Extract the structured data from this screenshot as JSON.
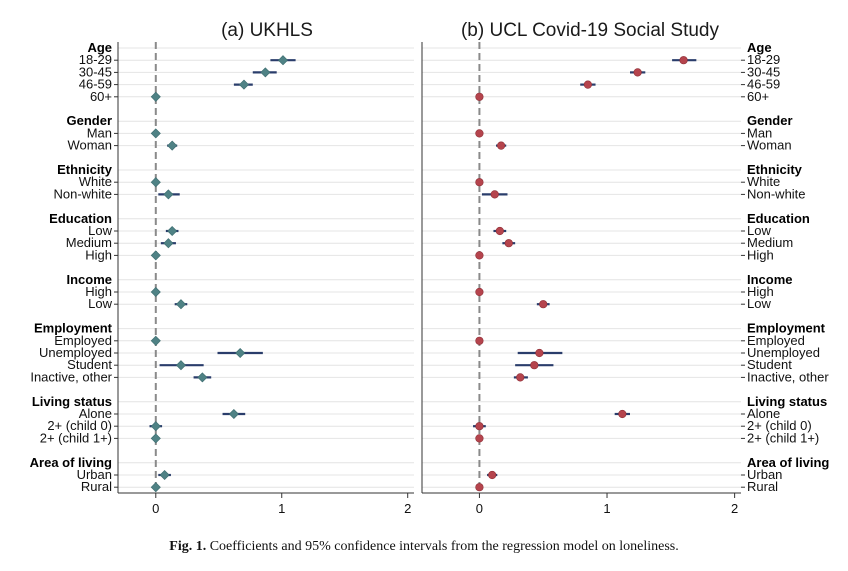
{
  "caption": {
    "label": "Fig. 1.",
    "text": "Coefficients and 95% confidence intervals from the regression model on loneliness."
  },
  "colors": {
    "ukhls_marker": "#4f8285",
    "ucl_marker": "#b5444d",
    "ci_line": "#2a3d6b",
    "zero_line": "#8a8a8a",
    "grid": "#e4e4e4"
  },
  "rows": [
    {
      "label": "Age",
      "type": "group"
    },
    {
      "label": "18-29",
      "type": "item"
    },
    {
      "label": "30-45",
      "type": "item"
    },
    {
      "label": "46-59",
      "type": "item"
    },
    {
      "label": "60+",
      "type": "item"
    },
    {
      "label": "",
      "type": "gap"
    },
    {
      "label": "Gender",
      "type": "group"
    },
    {
      "label": "Man",
      "type": "item"
    },
    {
      "label": "Woman",
      "type": "item"
    },
    {
      "label": "",
      "type": "gap"
    },
    {
      "label": "Ethnicity",
      "type": "group"
    },
    {
      "label": "White",
      "type": "item"
    },
    {
      "label": "Non-white",
      "type": "item"
    },
    {
      "label": "",
      "type": "gap"
    },
    {
      "label": "Education",
      "type": "group"
    },
    {
      "label": "Low",
      "type": "item"
    },
    {
      "label": "Medium",
      "type": "item"
    },
    {
      "label": "High",
      "type": "item"
    },
    {
      "label": "",
      "type": "gap"
    },
    {
      "label": "Income",
      "type": "group"
    },
    {
      "label": "High",
      "type": "item"
    },
    {
      "label": "Low",
      "type": "item"
    },
    {
      "label": "",
      "type": "gap"
    },
    {
      "label": "Employment",
      "type": "group"
    },
    {
      "label": "Employed",
      "type": "item"
    },
    {
      "label": "Unemployed",
      "type": "item"
    },
    {
      "label": "Student",
      "type": "item"
    },
    {
      "label": "Inactive, other",
      "type": "item"
    },
    {
      "label": "",
      "type": "gap"
    },
    {
      "label": "Living status",
      "type": "group"
    },
    {
      "label": "Alone",
      "type": "item"
    },
    {
      "label": "2+ (child 0)",
      "type": "item"
    },
    {
      "label": "2+ (child 1+)",
      "type": "item"
    },
    {
      "label": "",
      "type": "gap"
    },
    {
      "label": "Area of living",
      "type": "group"
    },
    {
      "label": "Urban",
      "type": "item"
    },
    {
      "label": "Rural",
      "type": "item"
    }
  ],
  "chart_data": [
    {
      "type": "scatter",
      "title": "(a) UKHLS",
      "xlim": [
        -0.3,
        2.05
      ],
      "xticks": [
        "0",
        "1",
        "2"
      ],
      "grid": "horizontal",
      "estimates": [
        {
          "row": 1,
          "coef": 1.01,
          "lo": 0.91,
          "hi": 1.11
        },
        {
          "row": 2,
          "coef": 0.87,
          "lo": 0.77,
          "hi": 0.96
        },
        {
          "row": 3,
          "coef": 0.7,
          "lo": 0.62,
          "hi": 0.77
        },
        {
          "row": 4,
          "coef": 0,
          "lo": 0,
          "hi": 0
        },
        {
          "row": 7,
          "coef": 0,
          "lo": 0,
          "hi": 0
        },
        {
          "row": 8,
          "coef": 0.13,
          "lo": 0.09,
          "hi": 0.17
        },
        {
          "row": 11,
          "coef": 0,
          "lo": 0,
          "hi": 0
        },
        {
          "row": 12,
          "coef": 0.1,
          "lo": 0.02,
          "hi": 0.19
        },
        {
          "row": 15,
          "coef": 0.13,
          "lo": 0.08,
          "hi": 0.18
        },
        {
          "row": 16,
          "coef": 0.1,
          "lo": 0.04,
          "hi": 0.16
        },
        {
          "row": 17,
          "coef": 0,
          "lo": 0,
          "hi": 0
        },
        {
          "row": 20,
          "coef": 0,
          "lo": 0,
          "hi": 0
        },
        {
          "row": 21,
          "coef": 0.2,
          "lo": 0.15,
          "hi": 0.25
        },
        {
          "row": 24,
          "coef": 0,
          "lo": 0,
          "hi": 0
        },
        {
          "row": 25,
          "coef": 0.67,
          "lo": 0.49,
          "hi": 0.85
        },
        {
          "row": 26,
          "coef": 0.2,
          "lo": 0.03,
          "hi": 0.38
        },
        {
          "row": 27,
          "coef": 0.37,
          "lo": 0.3,
          "hi": 0.44
        },
        {
          "row": 30,
          "coef": 0.62,
          "lo": 0.53,
          "hi": 0.71
        },
        {
          "row": 31,
          "coef": 0,
          "lo": -0.05,
          "hi": 0.05
        },
        {
          "row": 32,
          "coef": 0,
          "lo": 0,
          "hi": 0
        },
        {
          "row": 35,
          "coef": 0.07,
          "lo": 0.02,
          "hi": 0.12
        },
        {
          "row": 36,
          "coef": 0,
          "lo": 0,
          "hi": 0
        }
      ]
    },
    {
      "type": "scatter",
      "title": "(b) UCL Covid-19 Social Study",
      "xlim": [
        -0.45,
        2.05
      ],
      "xticks": [
        "0",
        "1",
        "2"
      ],
      "grid": "horizontal",
      "estimates": [
        {
          "row": 1,
          "coef": 1.6,
          "lo": 1.51,
          "hi": 1.7
        },
        {
          "row": 2,
          "coef": 1.24,
          "lo": 1.18,
          "hi": 1.3
        },
        {
          "row": 3,
          "coef": 0.85,
          "lo": 0.79,
          "hi": 0.91
        },
        {
          "row": 4,
          "coef": 0,
          "lo": 0,
          "hi": 0
        },
        {
          "row": 7,
          "coef": 0,
          "lo": 0,
          "hi": 0
        },
        {
          "row": 8,
          "coef": 0.17,
          "lo": 0.13,
          "hi": 0.21
        },
        {
          "row": 11,
          "coef": 0,
          "lo": 0,
          "hi": 0
        },
        {
          "row": 12,
          "coef": 0.12,
          "lo": 0.02,
          "hi": 0.22
        },
        {
          "row": 15,
          "coef": 0.16,
          "lo": 0.11,
          "hi": 0.21
        },
        {
          "row": 16,
          "coef": 0.23,
          "lo": 0.18,
          "hi": 0.28
        },
        {
          "row": 17,
          "coef": 0,
          "lo": 0,
          "hi": 0
        },
        {
          "row": 20,
          "coef": 0,
          "lo": 0,
          "hi": 0
        },
        {
          "row": 21,
          "coef": 0.5,
          "lo": 0.45,
          "hi": 0.55
        },
        {
          "row": 24,
          "coef": 0,
          "lo": 0,
          "hi": 0
        },
        {
          "row": 25,
          "coef": 0.47,
          "lo": 0.3,
          "hi": 0.65
        },
        {
          "row": 26,
          "coef": 0.43,
          "lo": 0.28,
          "hi": 0.58
        },
        {
          "row": 27,
          "coef": 0.32,
          "lo": 0.27,
          "hi": 0.38
        },
        {
          "row": 30,
          "coef": 1.12,
          "lo": 1.06,
          "hi": 1.18
        },
        {
          "row": 31,
          "coef": 0,
          "lo": -0.05,
          "hi": 0.05
        },
        {
          "row": 32,
          "coef": 0,
          "lo": 0,
          "hi": 0
        },
        {
          "row": 35,
          "coef": 0.1,
          "lo": 0.06,
          "hi": 0.14
        },
        {
          "row": 36,
          "coef": 0,
          "lo": 0,
          "hi": 0
        }
      ]
    }
  ]
}
